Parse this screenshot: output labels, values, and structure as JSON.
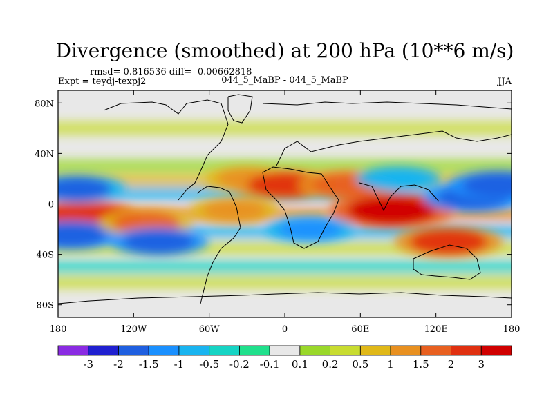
{
  "chart_data": {
    "type": "heatmap",
    "title": "Divergence (smoothed) at 200 hPa (10**6 m/s)",
    "stats": "rmsd= 0.816536 diff= -0.00662818",
    "experiment": "Expt = teydj-texpj2",
    "comparison": "044_5_MaBP - 044_5_MaBP",
    "season": "JJA",
    "x_ticks": [
      "180",
      "120W",
      "60W",
      "0",
      "60E",
      "120E",
      "180"
    ],
    "y_ticks": [
      "80N",
      "40N",
      "0",
      "40S",
      "80S"
    ],
    "xlim": [
      -180,
      180
    ],
    "ylim": [
      -90,
      90
    ],
    "colorbar_labels": [
      "-3",
      "-2",
      "-1.5",
      "-1",
      "-0.5",
      "-0.2",
      "-0.1",
      "0.1",
      "0.2",
      "0.5",
      "1",
      "1.5",
      "2",
      "3"
    ],
    "colorbar_colors": [
      "#8a2be2",
      "#2020d0",
      "#1f5fe0",
      "#1a90ff",
      "#19b4f0",
      "#16d4c4",
      "#20e08c",
      "#e8e8e8",
      "#9ad82a",
      "#c8dc30",
      "#e0b818",
      "#e89020",
      "#e86020",
      "#e03010",
      "#d00000"
    ],
    "levels": [
      -3,
      -2,
      -1.5,
      -1,
      -0.5,
      -0.2,
      -0.1,
      0.1,
      0.2,
      0.5,
      1,
      1.5,
      2,
      3
    ],
    "field_features": [
      {
        "lon": -160,
        "lat": -10,
        "value": 2.6
      },
      {
        "lon": -170,
        "lat": -25,
        "value": -1.8
      },
      {
        "lon": -165,
        "lat": 12,
        "value": -1.6
      },
      {
        "lon": -110,
        "lat": -15,
        "value": 1.5
      },
      {
        "lon": -100,
        "lat": -30,
        "value": -1.7
      },
      {
        "lon": -30,
        "lat": 20,
        "value": 1.0
      },
      {
        "lon": -40,
        "lat": -5,
        "value": 1.2
      },
      {
        "lon": 0,
        "lat": 15,
        "value": 2.0
      },
      {
        "lon": 20,
        "lat": -20,
        "value": -1.2
      },
      {
        "lon": 50,
        "lat": 15,
        "value": 1.8
      },
      {
        "lon": 85,
        "lat": -5,
        "value": 3.2
      },
      {
        "lon": 90,
        "lat": 20,
        "value": -1.0
      },
      {
        "lon": 130,
        "lat": -30,
        "value": 2.2
      },
      {
        "lon": 150,
        "lat": 5,
        "value": -1.8
      },
      {
        "lon": 170,
        "lat": 15,
        "value": -1.9
      }
    ]
  }
}
